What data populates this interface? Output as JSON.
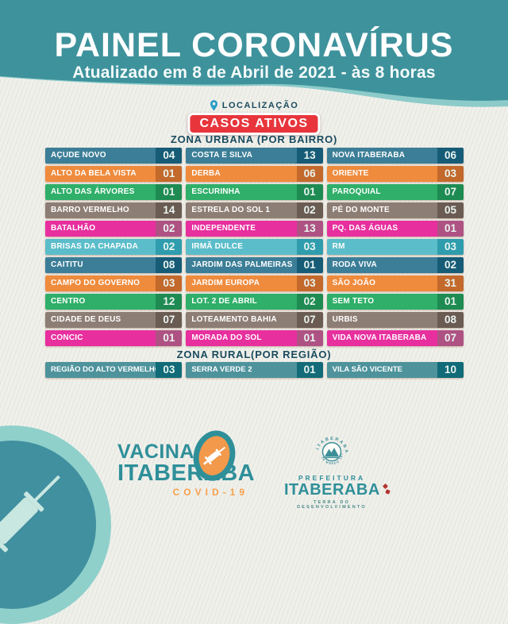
{
  "header": {
    "title": "PAINEL CORONAVÍRUS",
    "subtitle": "Atualizado em 8 de Abril de 2021 - às 8 horas"
  },
  "location": {
    "label": "LOCALIZAÇÃO"
  },
  "badge": {
    "text": "CASOS ATIVOS"
  },
  "chart_data": {
    "type": "table",
    "title": "PAINEL CORONAVÍRUS",
    "subtitle": "Atualizado em 8 de Abril de 2021 - às 8 horas",
    "value_meaning": "CASOS ATIVOS",
    "sections": [
      {
        "name": "ZONA URBANA (POR BAIRRO)",
        "columns": [
          "Bairro",
          "Casos ativos"
        ],
        "rows": [
          [
            "AÇUDE NOVO",
            4
          ],
          [
            "ALTO DA BELA VISTA",
            1
          ],
          [
            "ALTO DAS ÁRVORES",
            1
          ],
          [
            "BARRO VERMELHO",
            14
          ],
          [
            "BATALHÃO",
            2
          ],
          [
            "BRISAS DA CHAPADA",
            2
          ],
          [
            "CAITITU",
            8
          ],
          [
            "CAMPO DO GOVERNO",
            3
          ],
          [
            "CENTRO",
            12
          ],
          [
            "CIDADE DE DEUS",
            7
          ],
          [
            "CONCIC",
            1
          ],
          [
            "COSTA E SILVA",
            13
          ],
          [
            "DERBA",
            6
          ],
          [
            "ESCURINHA",
            1
          ],
          [
            "ESTRELA DO SOL 1",
            2
          ],
          [
            "INDEPENDENTE",
            13
          ],
          [
            "IRMÃ DULCE",
            3
          ],
          [
            "JARDIM DAS PALMEIRAS",
            1
          ],
          [
            "JARDIM EUROPA",
            3
          ],
          [
            "LOT. 2 DE ABRIL",
            2
          ],
          [
            "LOTEAMENTO BAHIA",
            7
          ],
          [
            "MORADA DO SOL",
            1
          ],
          [
            "NOVA ITABERABA",
            6
          ],
          [
            "ORIENTE",
            3
          ],
          [
            "PAROQUIAL",
            7
          ],
          [
            "PÉ DO MONTE",
            5
          ],
          [
            "PQ. DAS ÁGUAS",
            1
          ],
          [
            "RM",
            3
          ],
          [
            "RODA VIVA",
            2
          ],
          [
            "SÃO JOÃO",
            31
          ],
          [
            "SEM TETO",
            1
          ],
          [
            "URBIS",
            8
          ],
          [
            "VIDA NOVA ITABERABA",
            7
          ]
        ]
      },
      {
        "name": "ZONA RURAL(POR REGIÃO)",
        "columns": [
          "Região",
          "Casos ativos"
        ],
        "rows": [
          [
            "REGIÃO DO ALTO VERMELHO",
            3
          ],
          [
            "SERRA VERDE 2",
            1
          ],
          [
            "VILA SÃO VICENTE",
            10
          ]
        ]
      }
    ],
    "layout": "urban section rendered as 3 columns of 11 rows, column-major"
  },
  "colors": {
    "header_teal": "#3E929C",
    "wave_band": "#8CCBC9",
    "badge_red": "#E8353C",
    "section_title": "#1A4B5E",
    "logo_teal": "#2F8F99",
    "logo_orange": "#F5A04C",
    "palette": [
      {
        "name": "teal",
        "label": "#3C7E97",
        "value": "#175C77"
      },
      {
        "name": "orange",
        "label": "#EF8B3D",
        "value": "#C2692B"
      },
      {
        "name": "green",
        "label": "#2FAF69",
        "value": "#1E8B52"
      },
      {
        "name": "taupe",
        "label": "#8D7E75",
        "value": "#6A5B53"
      },
      {
        "name": "magenta",
        "label": "#E72F9E",
        "value": "#AE5283"
      },
      {
        "name": "cyan",
        "label": "#5BBDCA",
        "value": "#2F9DAD"
      }
    ],
    "rural": {
      "label": "#4E939C",
      "value": "#116B78"
    }
  },
  "footer": {
    "vacina_logo": {
      "line1": "VACINA",
      "line2": "ITABERABA",
      "line3": "COVID-19"
    },
    "prefeitura_logo": {
      "crest_top": "ITABERABA",
      "crest_bottom": "26 MARÇO 1877",
      "small": "PREFEITURA",
      "big": "ITABERABA",
      "tagline": "TERRA DO DESENVOLVIMENTO"
    }
  },
  "icons": [
    "location-pin-icon",
    "syringe-icon",
    "crest-icon"
  ]
}
